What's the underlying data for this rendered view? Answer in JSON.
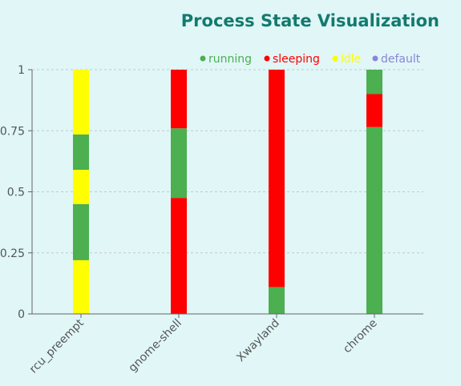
{
  "chart_data": {
    "type": "bar",
    "stacked": true,
    "title": "Process State Visualization",
    "xlabel": "",
    "ylabel": "",
    "ylim": [
      0,
      1
    ],
    "yticks": [
      "0",
      "0.25",
      "0.5",
      "0.75",
      "1"
    ],
    "ytick_values": [
      0,
      0.25,
      0.5,
      0.75,
      1
    ],
    "grid": true,
    "legend_position": "top-right",
    "legend": [
      {
        "name": "running",
        "color": "#4caf50"
      },
      {
        "name": "sleeping",
        "color": "#ff0000"
      },
      {
        "name": "idle",
        "color": "#ffff00"
      },
      {
        "name": "default",
        "color": "#8a85d6"
      }
    ],
    "categories": [
      "rcu_preempt",
      "gnome-shell",
      "Xwayland",
      "chrome"
    ],
    "bars": [
      {
        "category": "rcu_preempt",
        "segments": [
          {
            "state": "idle",
            "start": 0,
            "end": 0.22
          },
          {
            "state": "running",
            "start": 0.22,
            "end": 0.45
          },
          {
            "state": "idle",
            "start": 0.45,
            "end": 0.59
          },
          {
            "state": "running",
            "start": 0.59,
            "end": 0.735
          },
          {
            "state": "idle",
            "start": 0.735,
            "end": 1
          }
        ]
      },
      {
        "category": "gnome-shell",
        "segments": [
          {
            "state": "sleeping",
            "start": 0,
            "end": 0.475
          },
          {
            "state": "running",
            "start": 0.475,
            "end": 0.76
          },
          {
            "state": "sleeping",
            "start": 0.76,
            "end": 1
          }
        ]
      },
      {
        "category": "Xwayland",
        "segments": [
          {
            "state": "running",
            "start": 0,
            "end": 0.11
          },
          {
            "state": "sleeping",
            "start": 0.11,
            "end": 1
          }
        ]
      },
      {
        "category": "chrome",
        "segments": [
          {
            "state": "running",
            "start": 0,
            "end": 0.765
          },
          {
            "state": "sleeping",
            "start": 0.765,
            "end": 0.9
          },
          {
            "state": "running",
            "start": 0.9,
            "end": 1
          }
        ]
      }
    ]
  }
}
